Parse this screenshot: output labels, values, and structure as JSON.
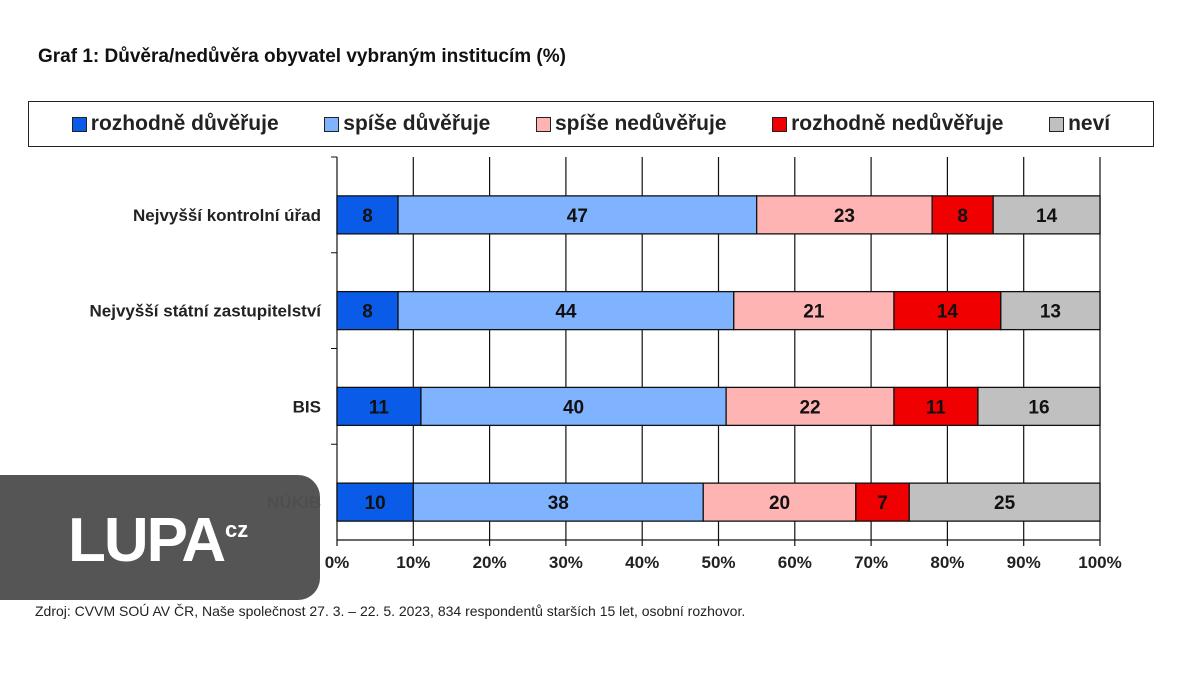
{
  "chart_data": {
    "type": "bar",
    "orientation": "horizontal-stacked-100",
    "title": "Graf 1: Důvěra/nedůvěra obyvatel vybraným institucím (%)",
    "categories": [
      "Nejvyšší kontrolní úřad",
      "Nejvyšší státní zastupitelství",
      "BIS",
      "NÚKIB"
    ],
    "series": [
      {
        "name": "rozhodně důvěřuje",
        "color": "#0a5ce8",
        "values": [
          8,
          8,
          11,
          10
        ]
      },
      {
        "name": "spíše důvěřuje",
        "color": "#80b3ff",
        "values": [
          47,
          44,
          40,
          38
        ]
      },
      {
        "name": "spíše nedůvěřuje",
        "color": "#ffb4b4",
        "values": [
          23,
          21,
          22,
          20
        ]
      },
      {
        "name": "rozhodně nedůvěřuje",
        "color": "#f00000",
        "values": [
          8,
          14,
          11,
          7
        ]
      },
      {
        "name": "neví",
        "color": "#c0c0c0",
        "values": [
          14,
          13,
          16,
          25
        ]
      }
    ],
    "xlim": [
      0,
      100
    ],
    "xticks": [
      "0%",
      "10%",
      "20%",
      "30%",
      "40%",
      "50%",
      "60%",
      "70%",
      "80%",
      "90%",
      "100%"
    ],
    "grid": true,
    "legend": "top"
  },
  "source": "Zdroj: CVVM SOÚ AV ČR, Naše společnost 27. 3. – 22. 5. 2023, 834 respondentů starších 15 let, osobní rozhovor.",
  "logo": {
    "text": "LUPA",
    "suffix": "cz"
  }
}
